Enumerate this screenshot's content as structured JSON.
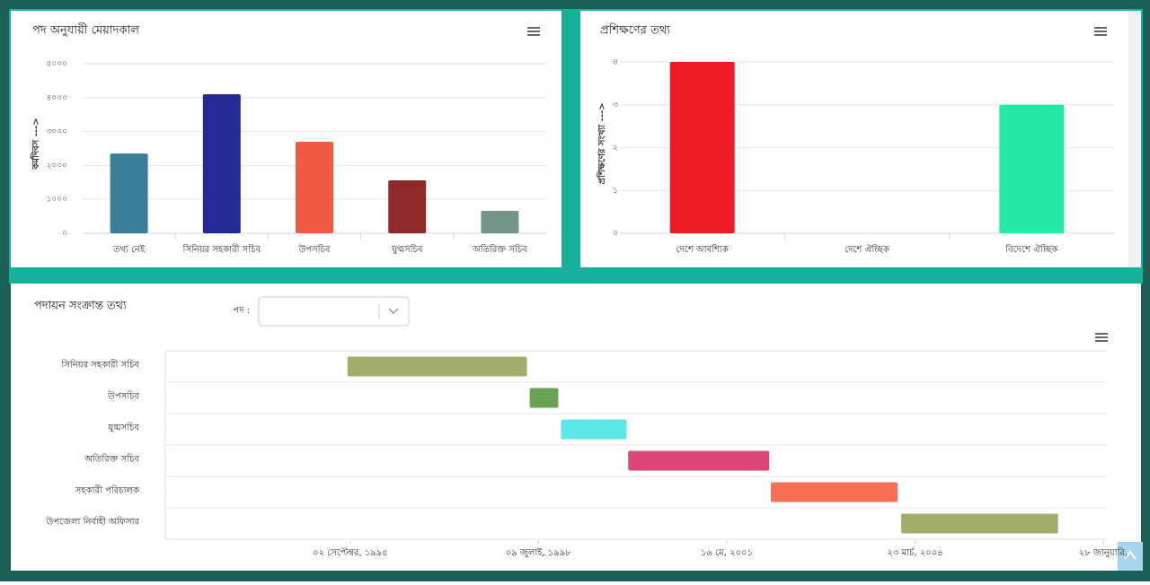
{
  "chart_data": [
    {
      "type": "bar",
      "title": "পদ অনুযায়ী মেয়াদকাল",
      "y_label": "কর্মদিবস --->",
      "categories": [
        "তথ্য নেই",
        "সিনিয়র সহকারী সচিব",
        "উপসচিব",
        "যুগ্মসচিব",
        "অতিরিক্ত সচিব"
      ],
      "values": [
        2350,
        4100,
        2700,
        1560,
        660
      ],
      "colors": [
        "#3a7f97",
        "#262a97",
        "#f05a45",
        "#8e2a2a",
        "#749486"
      ],
      "ylim": [
        0,
        5000
      ],
      "yticks": [
        {
          "value": 0,
          "label": "০"
        },
        {
          "value": 1000,
          "label": "১০০০"
        },
        {
          "value": 2000,
          "label": "২০০০"
        },
        {
          "value": 3000,
          "label": "৩০০০"
        },
        {
          "value": 4000,
          "label": "৪০০০"
        },
        {
          "value": 5000,
          "label": "৫০০০"
        }
      ],
      "grid": true
    },
    {
      "type": "bar",
      "title": "প্রশিক্ষণের তথ্য",
      "y_label": "প্রশিক্ষণের সংখ্যা --->",
      "categories": [
        "দেশে আবশ্যিক",
        "দেশে ঐচ্ছিক",
        "বিদেশে ঐচ্ছিক"
      ],
      "values": [
        4,
        0,
        3
      ],
      "colors": [
        "#ed1c24",
        "#4f81bd",
        "#25e8a5"
      ],
      "ylim": [
        0,
        4
      ],
      "yticks": [
        {
          "value": 0,
          "label": "০"
        },
        {
          "value": 1,
          "label": "১"
        },
        {
          "value": 2,
          "label": "২"
        },
        {
          "value": 3,
          "label": "৩"
        },
        {
          "value": 4,
          "label": "৪"
        }
      ],
      "grid": true
    },
    {
      "type": "gantt",
      "title": "পদায়ন সংক্রান্ত তথ্য",
      "filter_label": "পদ :",
      "categories": [
        "সিনিয়র সহকারী সচিব",
        "উপসচিব",
        "যুগ্মসচিব",
        "অতিরিক্ত সচিব",
        "সহকারী পরিচালক",
        "উপজেলা নির্বাহী অফিসার"
      ],
      "starts": [
        "1995-08-18",
        "1998-05-22",
        "1998-11-11",
        "1999-11-18",
        "2002-01-15",
        "2004-01-06"
      ],
      "ends": [
        "1998-05-07",
        "1998-10-27",
        "1999-11-09",
        "2002-01-06",
        "2003-12-17",
        "2006-05-23"
      ],
      "colors": [
        "#a1ae6b",
        "#6aa153",
        "#5ce6e6",
        "#db4677",
        "#f76f56",
        "#a1ae6b"
      ],
      "xlim": [
        "1992-11-13",
        "2007-02-17"
      ],
      "xticks": [
        {
          "value": "1995-09-02",
          "label": "০২ সেপ্টেম্বর, ১৯৯৫"
        },
        {
          "value": "1998-07-09",
          "label": "০৯ জুলাই, ১৯৯৮"
        },
        {
          "value": "2001-05-16",
          "label": "১৬ মে, ২০০১"
        },
        {
          "value": "2004-03-23",
          "label": "২৩ মার্চ, ২০০৪"
        },
        {
          "value": "2007-01-28",
          "label": "২৮ জানুয়ারি,"
        }
      ]
    }
  ]
}
